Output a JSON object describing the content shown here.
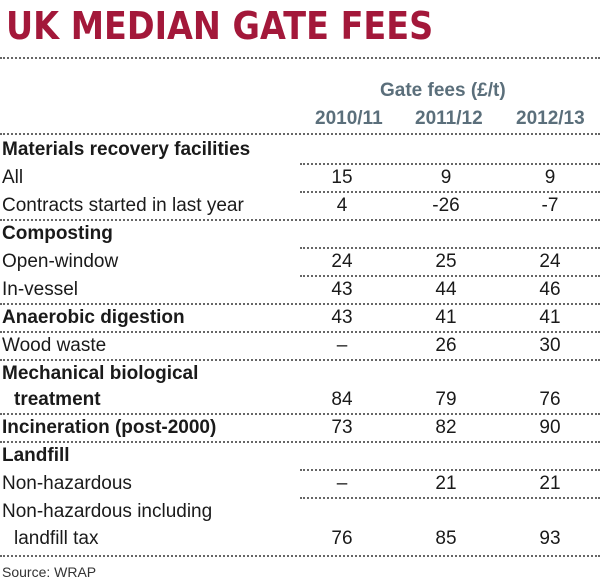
{
  "title": "UK MEDIAN GATE FEES",
  "header": {
    "group_label": "Gate fees (£/t)",
    "columns": [
      "2010/11",
      "2011/12",
      "2012/13"
    ]
  },
  "rows": [
    {
      "label": "Materials recovery facilities",
      "bold": true,
      "values": [
        "",
        "",
        ""
      ]
    },
    {
      "label": "All",
      "bold": false,
      "values": [
        "15",
        "9",
        "9"
      ]
    },
    {
      "label": "Contracts started in last year",
      "bold": false,
      "values": [
        "4",
        "-26",
        "-7"
      ]
    },
    {
      "label": "Composting",
      "bold": true,
      "values": [
        "",
        "",
        ""
      ]
    },
    {
      "label": "Open-window",
      "bold": false,
      "values": [
        "24",
        "25",
        "24"
      ]
    },
    {
      "label": "In-vessel",
      "bold": false,
      "values": [
        "43",
        "44",
        "46"
      ]
    },
    {
      "label": "Anaerobic digestion",
      "bold": true,
      "values": [
        "43",
        "41",
        "41"
      ]
    },
    {
      "label": "Wood waste",
      "bold": false,
      "values": [
        "–",
        "26",
        "30"
      ]
    },
    {
      "label": "Mechanical biological",
      "bold": true,
      "values": [
        "",
        "",
        ""
      ]
    },
    {
      "label": "treatment",
      "bold": true,
      "values": [
        "84",
        "79",
        "76"
      ]
    },
    {
      "label": "Incineration (post-2000)",
      "bold": true,
      "values": [
        "73",
        "82",
        "90"
      ]
    },
    {
      "label": "Landfill",
      "bold": true,
      "values": [
        "",
        "",
        ""
      ]
    },
    {
      "label": "Non-hazardous",
      "bold": false,
      "values": [
        "–",
        "21",
        "21"
      ]
    },
    {
      "label": "Non-hazardous including",
      "bold": false,
      "values": [
        "",
        "",
        ""
      ]
    },
    {
      "label": "landfill tax",
      "bold": false,
      "values": [
        "76",
        "85",
        "93"
      ]
    }
  ],
  "source": "Source: WRAP",
  "colors": {
    "title": "#a3183a",
    "header": "#5b6f7b",
    "rule": "#666666"
  }
}
